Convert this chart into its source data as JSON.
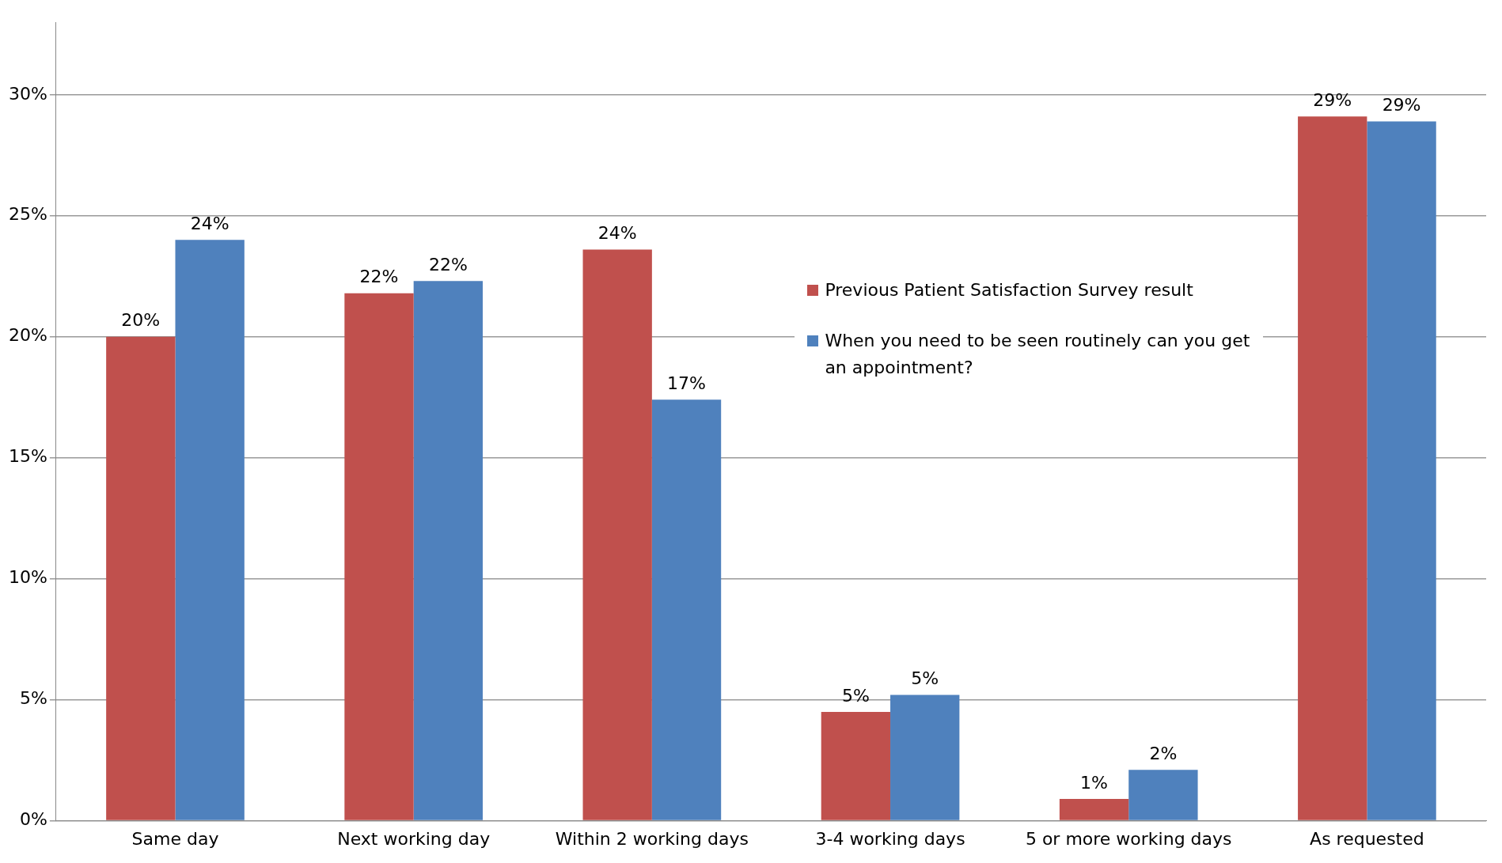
{
  "chart_data": {
    "type": "bar",
    "categories": [
      "Same day",
      "Next working day",
      "Within 2 working days",
      "3-4 working days",
      "5 or more working days",
      "As requested"
    ],
    "series": [
      {
        "name": "Previous Patient Satisfaction Survey result",
        "color": "#c0504d",
        "values": [
          20.0,
          21.8,
          23.6,
          4.5,
          0.9,
          29.1
        ],
        "value_labels": [
          "20%",
          "22%",
          "24%",
          "5%",
          "1%",
          "29%"
        ]
      },
      {
        "name": "When you need to be seen routinely can you get an appointment?",
        "color": "#4f81bd",
        "values": [
          24.0,
          22.3,
          17.4,
          5.2,
          2.1,
          28.9
        ],
        "value_labels": [
          "24%",
          "22%",
          "17%",
          "5%",
          "2%",
          "29%"
        ]
      }
    ],
    "ylim": [
      0,
      33
    ],
    "yticks": [
      {
        "value": 0,
        "label": "0%"
      },
      {
        "value": 5,
        "label": "5%"
      },
      {
        "value": 10,
        "label": "10%"
      },
      {
        "value": 15,
        "label": "15%"
      },
      {
        "value": 20,
        "label": "20%"
      },
      {
        "value": 25,
        "label": "25%"
      },
      {
        "value": 30,
        "label": "30%"
      }
    ],
    "grid": "y",
    "legend": "right"
  }
}
